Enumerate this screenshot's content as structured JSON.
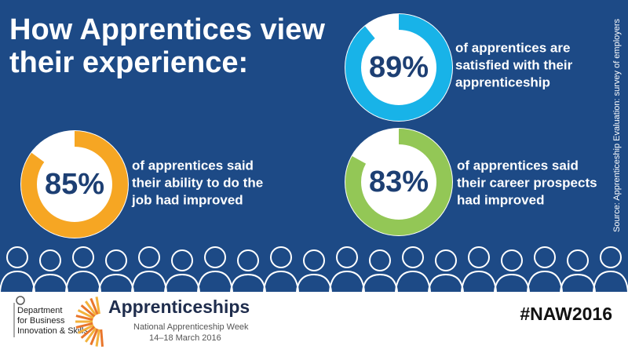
{
  "title": [
    "How Apprentices view",
    "their experience:"
  ],
  "chart_data": [
    {
      "type": "donut",
      "values": [
        89
      ],
      "value_labels": [
        "89%"
      ],
      "color": "#18b3e8",
      "caption": [
        "of apprentices are",
        "satisfied with their",
        "apprenticeship"
      ]
    },
    {
      "type": "donut",
      "values": [
        85
      ],
      "value_labels": [
        "85%"
      ],
      "color": "#f6a623",
      "caption": [
        "of apprentices said",
        "their ability to do the",
        "job had improved"
      ]
    },
    {
      "type": "donut",
      "values": [
        83
      ],
      "value_labels": [
        "83%"
      ],
      "color": "#93c756",
      "caption": [
        "of apprentices said",
        "their career prospects",
        "had improved"
      ]
    }
  ],
  "source": "Source: Apprenticeship Evaluation: survey of employers",
  "footer": {
    "department": [
      "Department",
      "for Business",
      "Innovation & Skills"
    ],
    "brand": "Apprenticeships",
    "event": "National Apprenticeship Week",
    "dates": "14–18 March 2016",
    "hashtag": "#NAW2016"
  }
}
